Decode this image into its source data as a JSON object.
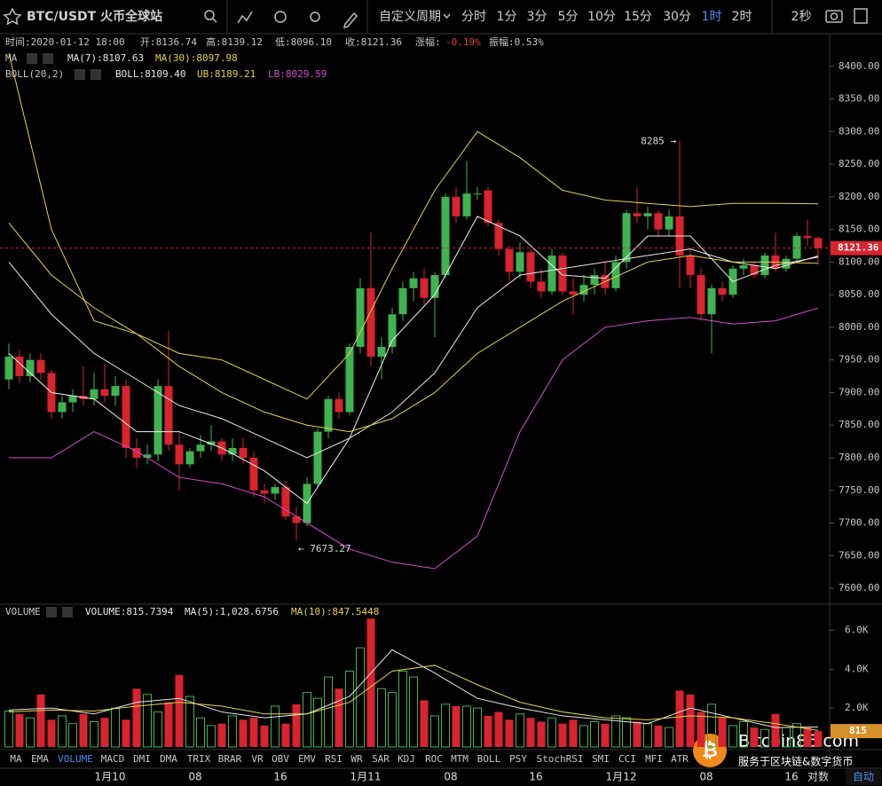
{
  "toolbar": {
    "symbol": "BTC/USDT 火币全球站",
    "custom_period": "自定义周期",
    "periods": [
      "分时",
      "1分",
      "3分",
      "5分",
      "10分",
      "15分",
      "30分",
      "1时",
      "2时"
    ],
    "seconds": "2秒"
  },
  "info": [
    "时间:2020-01-12 18:00",
    "开:8136.74",
    "高:8139.12",
    "低:8096.10",
    "收:8121.36"
  ],
  "change_label": "涨幅:",
  "change_value": "-0.19%",
  "amplitude": "振幅:0.53%",
  "ma_legend": {
    "title": "MA",
    "items": [
      {
        "text": "MA(7):8107.63",
        "color": "#e8e8e8"
      },
      {
        "text": "MA(30):8097.98",
        "color": "#e6d34a"
      }
    ]
  },
  "boll_legend": {
    "title": "BOLL(20,2)",
    "items": [
      {
        "text": "BOLL:8109.40",
        "color": "#e8e8e8"
      },
      {
        "text": "UB:8189.21",
        "color": "#e6d34a"
      },
      {
        "text": "LB:8029.59",
        "color": "#d24fd2"
      }
    ]
  },
  "volume_legend": {
    "title": "VOLUME",
    "items": [
      {
        "text": "VOLUME:815.7394",
        "color": "#e8e8e8"
      },
      {
        "text": "MA(5):1,028.6756",
        "color": "#e8e8e8"
      },
      {
        "text": "MA(10):847.5448",
        "color": "#e6d34a"
      }
    ]
  },
  "annotations": {
    "high": "8285 →",
    "low": "← 7673.27"
  },
  "price_tag": "8121.36",
  "volume_tag": "815",
  "indicator_tabs": [
    "MA",
    "EMA",
    "VOLUME",
    "MACD",
    "DMI",
    "DMA",
    "TRIX",
    "BRAR",
    "VR",
    "OBV",
    "EMV",
    "RSI",
    "WR",
    "SAR",
    "KDJ",
    "ROC",
    "MTM",
    "BOLL",
    "PSY",
    "StochRSI",
    "SMI",
    "CCI",
    "MFI",
    "ATR"
  ],
  "axis_options": [
    "对数",
    "自动"
  ],
  "watermark": {
    "title": "Bitcoin86.com",
    "subtitle": "服务于区块链&数字货币"
  },
  "chart_data": {
    "type": "candlestick",
    "grid": false,
    "up_color": "#3fb34f",
    "down_color": "#d9232d",
    "categories": [
      null,
      null,
      null,
      null,
      null,
      null,
      null,
      null,
      null,
      null,
      "1月10",
      null,
      null,
      null,
      null,
      null,
      null,
      null,
      "08",
      null,
      null,
      null,
      null,
      null,
      null,
      null,
      "16",
      null,
      null,
      null,
      null,
      null,
      null,
      null,
      "1月11",
      null,
      null,
      null,
      null,
      null,
      null,
      null,
      "08",
      null,
      null,
      null,
      null,
      null,
      null,
      null,
      "16",
      null,
      null,
      null,
      null,
      null,
      null,
      null,
      "1月12",
      null,
      null,
      null,
      null,
      null,
      null,
      null,
      "08",
      null,
      null,
      null,
      null,
      null,
      null,
      null,
      "16",
      null,
      null
    ],
    "open": [
      7920,
      7955,
      7925,
      7950,
      7930,
      7870,
      7885,
      7895,
      7890,
      7905,
      7895,
      7910,
      7815,
      7800,
      7805,
      7910,
      7820,
      7790,
      7810,
      7820,
      7825,
      7805,
      7815,
      7800,
      7750,
      7745,
      7755,
      7710,
      7700,
      7760,
      7840,
      7890,
      7870,
      7970,
      8060,
      7955,
      7970,
      8020,
      8060,
      8075,
      8045,
      8080,
      8200,
      8170,
      8205,
      8210,
      8160,
      8120,
      8085,
      8115,
      8070,
      8055,
      8110,
      8055,
      8050,
      8065,
      8080,
      8060,
      8100,
      8175,
      8170,
      8175,
      8150,
      8170,
      8110,
      8080,
      8020,
      8060,
      8050,
      8090,
      8095,
      8080,
      8110,
      8090,
      8105,
      8140,
      8136.74
    ],
    "high": [
      7975,
      7965,
      7960,
      7960,
      7935,
      7895,
      7905,
      7940,
      7930,
      7945,
      7925,
      7920,
      7830,
      7820,
      7920,
      7995,
      7840,
      7815,
      7835,
      7850,
      7830,
      7830,
      7830,
      7810,
      7760,
      7760,
      7765,
      7725,
      7770,
      7845,
      7895,
      7900,
      7975,
      8075,
      8145,
      7985,
      8030,
      8070,
      8085,
      8090,
      8085,
      8205,
      8215,
      8255,
      8215,
      8215,
      8165,
      8125,
      8130,
      8120,
      8090,
      8120,
      8115,
      8075,
      8080,
      8090,
      8100,
      8110,
      8180,
      8215,
      8185,
      8180,
      8180,
      8285,
      8120,
      8090,
      8065,
      8070,
      8095,
      8105,
      8100,
      8115,
      8145,
      8110,
      8145,
      8165,
      8139.12
    ],
    "low": [
      7905,
      7915,
      7915,
      7920,
      7860,
      7860,
      7870,
      7880,
      7880,
      7885,
      7880,
      7800,
      7785,
      7790,
      7795,
      7810,
      7750,
      7785,
      7800,
      7810,
      7795,
      7795,
      7790,
      7740,
      7730,
      7735,
      7705,
      7673.27,
      7695,
      7755,
      7830,
      7860,
      7865,
      7960,
      7940,
      7920,
      7960,
      8010,
      8040,
      8035,
      7985,
      8075,
      8160,
      8165,
      8195,
      8155,
      8110,
      8070,
      8075,
      8060,
      8045,
      8050,
      8050,
      8020,
      8040,
      8050,
      8050,
      8055,
      8090,
      8160,
      8150,
      8140,
      8140,
      8060,
      8060,
      8010,
      7960,
      8040,
      8045,
      8080,
      8075,
      8075,
      8085,
      8085,
      8100,
      8125,
      8096.1
    ],
    "close": [
      7955,
      7925,
      7950,
      7930,
      7870,
      7885,
      7895,
      7890,
      7905,
      7895,
      7910,
      7815,
      7800,
      7805,
      7910,
      7820,
      7790,
      7810,
      7820,
      7825,
      7805,
      7815,
      7800,
      7750,
      7745,
      7755,
      7710,
      7700,
      7760,
      7840,
      7890,
      7870,
      7970,
      8060,
      7955,
      7970,
      8020,
      8060,
      8075,
      8045,
      8080,
      8200,
      8170,
      8205,
      8205,
      8160,
      8120,
      8085,
      8115,
      8070,
      8055,
      8110,
      8055,
      8050,
      8065,
      8080,
      8060,
      8100,
      8175,
      8170,
      8175,
      8150,
      8170,
      8110,
      8080,
      8020,
      8060,
      8050,
      8090,
      8095,
      8080,
      8110,
      8090,
      8105,
      8140,
      8136.74,
      8121.36
    ],
    "ylim": [
      7577,
      8450
    ],
    "yticks": [
      {
        "value": 7600,
        "label": "7600.00"
      },
      {
        "value": 7650,
        "label": "7650.00"
      },
      {
        "value": 7700,
        "label": "7700.00"
      },
      {
        "value": 7750,
        "label": "7750.00"
      },
      {
        "value": 7800,
        "label": "7800.00"
      },
      {
        "value": 7850,
        "label": "7850.00"
      },
      {
        "value": 7900,
        "label": "7900.00"
      },
      {
        "value": 7950,
        "label": "7950.00"
      },
      {
        "value": 8000,
        "label": "8000.00"
      },
      {
        "value": 8050,
        "label": "8050.00"
      },
      {
        "value": 8100,
        "label": "8100.00"
      },
      {
        "value": 8150,
        "label": "8150.00"
      },
      {
        "value": 8200,
        "label": "8200.00"
      },
      {
        "value": 8250,
        "label": "8250.00"
      },
      {
        "value": 8300,
        "label": "8300.00"
      },
      {
        "value": 8350,
        "label": "8350.00"
      },
      {
        "value": 8400,
        "label": "8400.00"
      }
    ],
    "overlays": {
      "x": [
        0,
        4,
        8,
        12,
        16,
        20,
        24,
        28,
        32,
        36,
        40,
        44,
        48,
        52,
        56,
        60,
        64,
        68,
        72,
        76
      ],
      "series": [
        {
          "color": "#e6d34a",
          "values": [
            8420,
            8150,
            8010,
            7990,
            7960,
            7950,
            7920,
            7890,
            7960,
            8090,
            8210,
            8300,
            8260,
            8210,
            8195,
            8190,
            8185,
            8190,
            8190,
            8189.21
          ]
        },
        {
          "color": "#d24fd2",
          "values": [
            7800,
            7800,
            7840,
            7810,
            7770,
            7760,
            7740,
            7700,
            7660,
            7640,
            7630,
            7680,
            7840,
            7950,
            8000,
            8010,
            8015,
            8005,
            8010,
            8029.59
          ]
        },
        {
          "color": "#e8e8e8",
          "values": [
            8100,
            8020,
            7960,
            7920,
            7880,
            7860,
            7830,
            7800,
            7830,
            7870,
            7930,
            8030,
            8080,
            8090,
            8100,
            8110,
            8120,
            8100,
            8090,
            8109.4
          ]
        },
        {
          "color": "#e6d34a",
          "values": [
            8160,
            8080,
            8030,
            7990,
            7940,
            7900,
            7870,
            7850,
            7840,
            7860,
            7900,
            7960,
            8000,
            8040,
            8070,
            8100,
            8110,
            8100,
            8100,
            8097.98
          ]
        },
        {
          "color": "#f2f2f2",
          "values": [
            7960,
            7900,
            7890,
            7840,
            7840,
            7815,
            7780,
            7730,
            7830,
            7980,
            8050,
            8170,
            8140,
            8080,
            8075,
            8140,
            8140,
            8070,
            8095,
            8107.63
          ]
        }
      ]
    },
    "volume": {
      "values": [
        1850,
        1700,
        1500,
        2700,
        1400,
        1600,
        1200,
        1700,
        1300,
        1500,
        2000,
        1400,
        3000,
        2700,
        1800,
        2300,
        3700,
        2600,
        1500,
        1100,
        1200,
        1600,
        1400,
        1500,
        1100,
        2100,
        1200,
        2200,
        2800,
        2500,
        3600,
        3000,
        3900,
        5100,
        6600,
        3000,
        2800,
        3900,
        3600,
        2400,
        1600,
        2200,
        2100,
        2100,
        2000,
        1600,
        1800,
        1400,
        1700,
        1500,
        1300,
        1500,
        1200,
        1400,
        1100,
        1300,
        1200,
        1600,
        1500,
        1300,
        1200,
        1100,
        1000,
        2900,
        2700,
        1800,
        2200,
        1500,
        1100,
        1300,
        1000,
        900,
        1700,
        1000,
        1200,
        1000,
        815.7394
      ],
      "ylim": [
        0,
        7300
      ],
      "yticks": [
        {
          "value": 2000,
          "label": "2.0K"
        },
        {
          "value": 4000,
          "label": "4.0K"
        },
        {
          "value": 6000,
          "label": "6.0K"
        }
      ],
      "overlays": {
        "x": [
          0,
          4,
          8,
          12,
          16,
          20,
          24,
          28,
          32,
          36,
          40,
          44,
          48,
          52,
          56,
          60,
          64,
          68,
          72,
          76
        ],
        "series": [
          {
            "color": "#e8e8e8",
            "values": [
              1900,
              2000,
              1700,
              2300,
              2500,
              1800,
              1500,
              1700,
              2600,
              5000,
              3800,
              2500,
              2000,
              1600,
              1400,
              1200,
              2000,
              1500,
              1000,
              1028.6756
            ]
          },
          {
            "color": "#e6d34a",
            "values": [
              1800,
              1900,
              1850,
              2100,
              2300,
              2100,
              1700,
              1700,
              2300,
              3900,
              4200,
              3200,
              2300,
              1800,
              1500,
              1400,
              1600,
              1500,
              1200,
              847.5448
            ]
          }
        ]
      }
    }
  }
}
